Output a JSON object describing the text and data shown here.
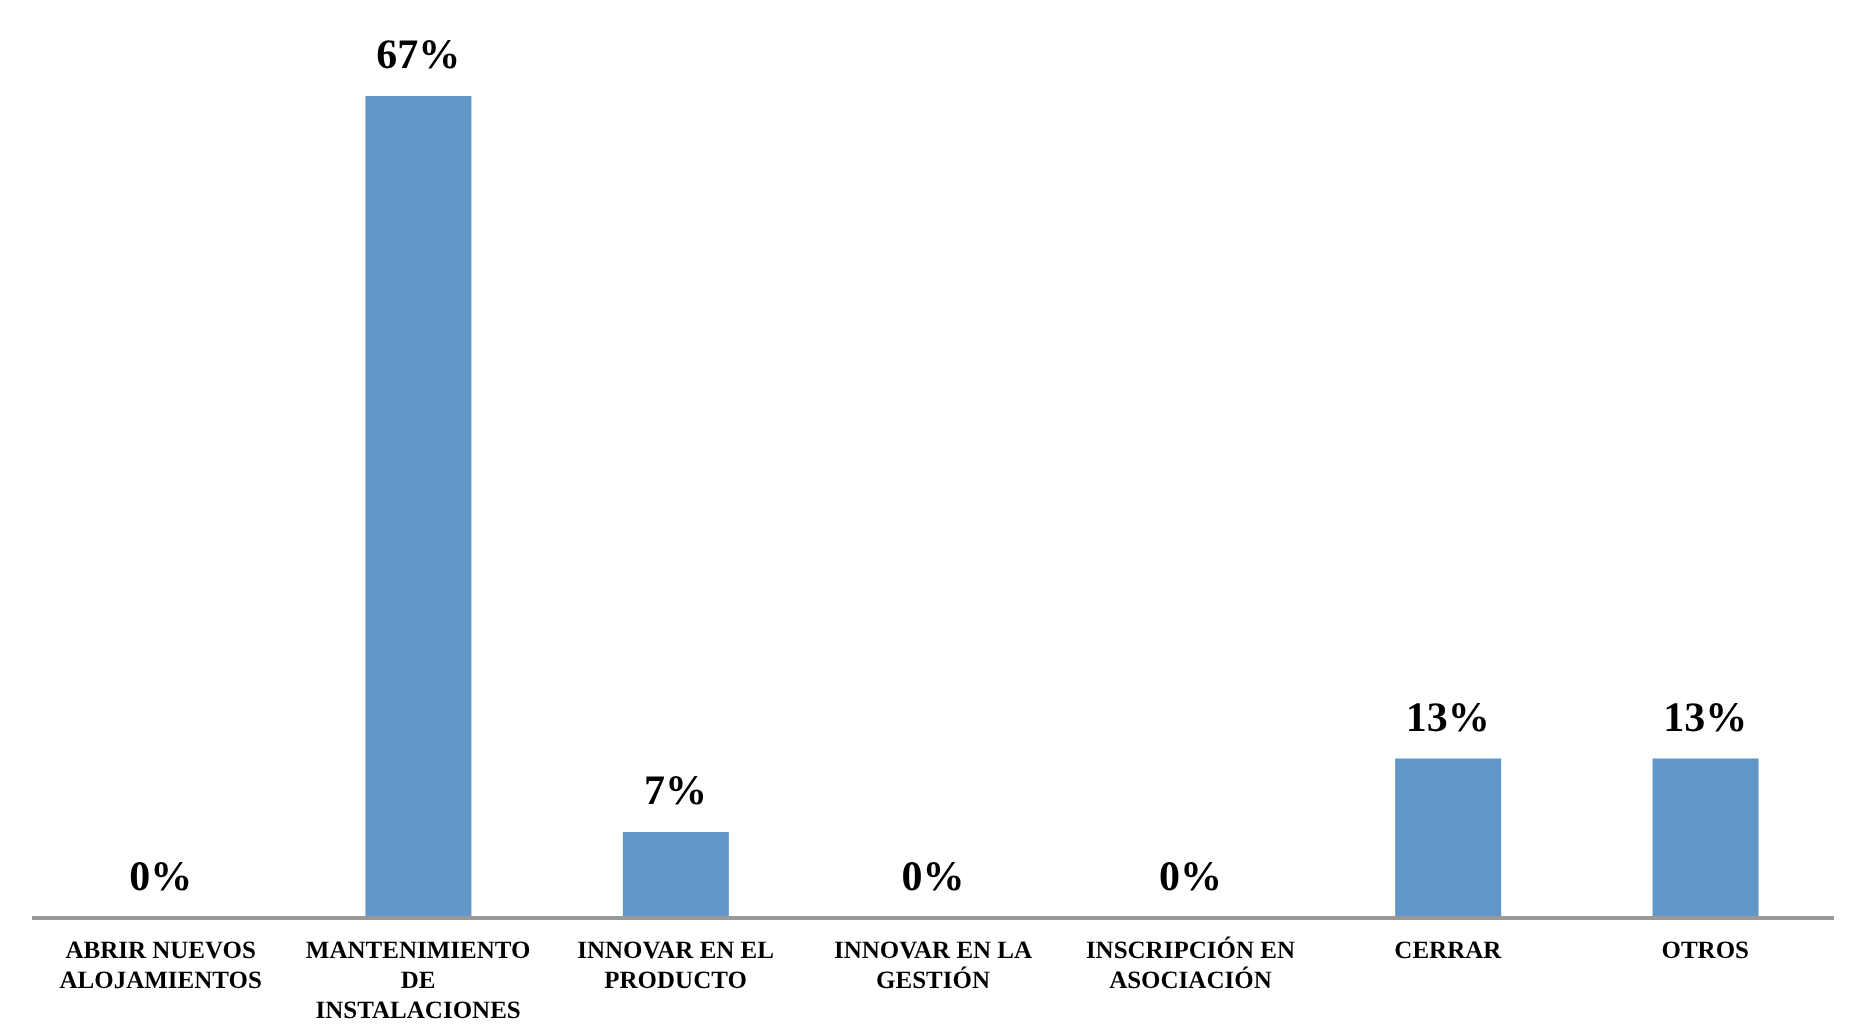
{
  "chart_data": {
    "type": "bar",
    "categories": [
      "ABRIR NUEVOS ALOJAMIENTOS",
      "MANTENIMIENTO DE INSTALACIONES",
      "INNOVAR EN EL PRODUCTO",
      "INNOVAR EN LA GESTIÓN",
      "INSCRIPCIÓN EN ASOCIACIÓN",
      "CERRAR",
      "OTROS"
    ],
    "values": [
      0,
      67,
      7,
      0,
      0,
      13,
      13
    ],
    "value_labels": [
      "0%",
      "67%",
      "7%",
      "0%",
      "0%",
      "13%",
      "13%"
    ],
    "color": "#6097c8",
    "grid": false,
    "legend": false
  }
}
